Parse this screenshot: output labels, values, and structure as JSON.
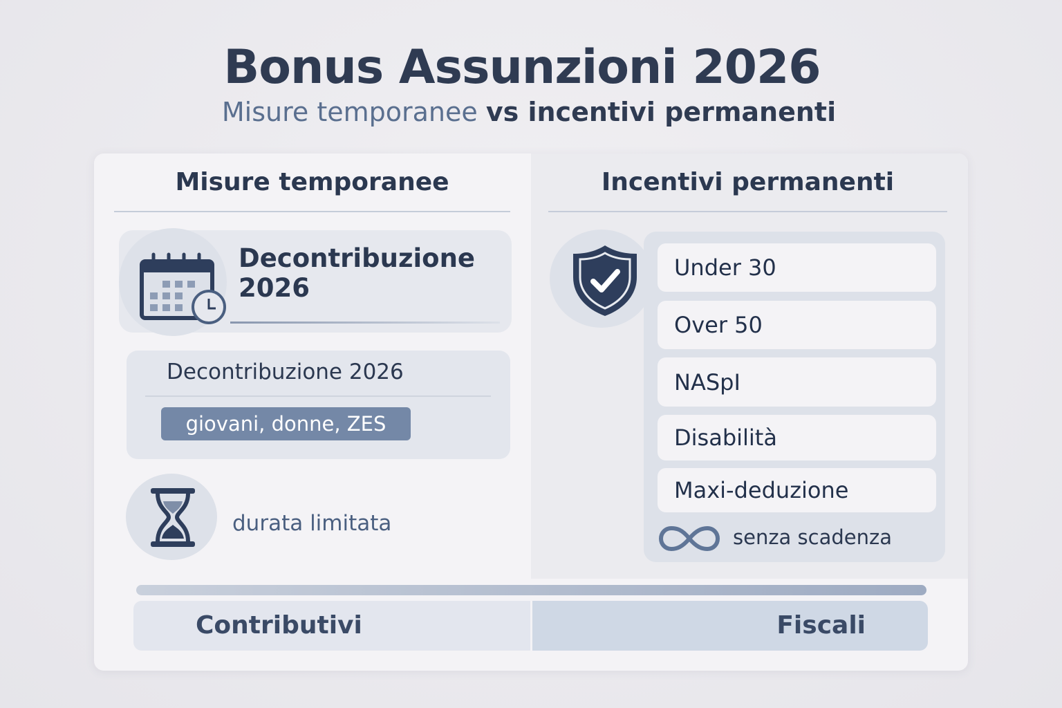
{
  "title": "Bonus Assunzioni 2026",
  "subtitle": {
    "part1": "Misure temporanee",
    "part2": "vs incentivi permanenti"
  },
  "left": {
    "header": "Misure temporanee",
    "feature": {
      "title_line1": "Decontribuzione",
      "title_line2": "2026",
      "icon": "calendar-clock-icon"
    },
    "detail": {
      "title": "Decontribuzione 2026",
      "tag": "giovani, donne, ZES"
    },
    "duration": {
      "label": "durata limitata",
      "icon": "hourglass-icon"
    }
  },
  "right": {
    "header": "Incentivi permanenti",
    "icon": "shield-check-icon",
    "items": [
      "Under 30",
      "Over 50",
      "NASpI",
      "Disabilità",
      "Maxi-deduzione"
    ],
    "footer": {
      "label": "senza scadenza",
      "icon": "infinity-icon"
    }
  },
  "bottom": {
    "left": "Contributivi",
    "right": "Fiscali"
  },
  "colors": {
    "primary": "#2f3b52",
    "accent": "#7488a7",
    "panel": "#dde1e9"
  }
}
